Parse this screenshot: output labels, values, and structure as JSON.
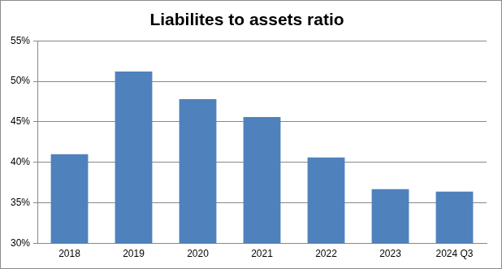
{
  "chart_data": {
    "type": "bar",
    "title": "Liabilites to assets ratio",
    "categories": [
      "2018",
      "2019",
      "2020",
      "2021",
      "2022",
      "2023",
      "2024 Q3"
    ],
    "values": [
      41.0,
      51.2,
      47.8,
      45.6,
      40.6,
      36.7,
      36.4
    ],
    "color": "#4f81bd",
    "ylim": [
      30,
      55
    ],
    "yticks": [
      {
        "value": 30,
        "label": "30%"
      },
      {
        "value": 35,
        "label": "35%"
      },
      {
        "value": 40,
        "label": "40%"
      },
      {
        "value": 45,
        "label": "45%"
      },
      {
        "value": 50,
        "label": "50%"
      },
      {
        "value": 55,
        "label": "55%"
      }
    ],
    "grid": true
  }
}
